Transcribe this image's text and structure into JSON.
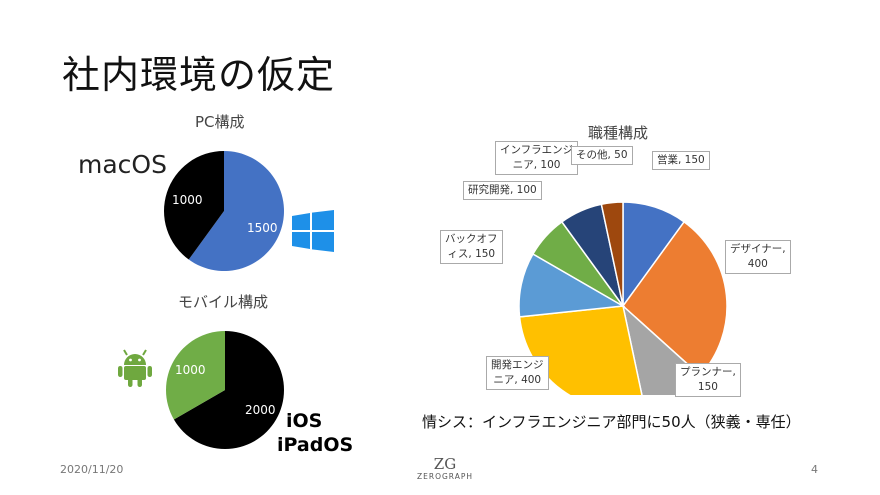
{
  "slide": {
    "title": "社内環境の仮定",
    "date": "2020/11/20",
    "page_number": "4",
    "logo_text": "ZEROGRAPH",
    "logo_mark": "ZG",
    "note": "情シス：インフラエンジニア部門に50人（狭義・専任）"
  },
  "pc": {
    "subtitle": "PC構成",
    "os_label": "macOS",
    "icon": "windows-logo-icon"
  },
  "mobile": {
    "subtitle": "モバイル構成",
    "os_label_1": "iOS",
    "os_label_2": "iPadOS",
    "icon": "android-robot-icon"
  },
  "job": {
    "subtitle": "職種構成"
  },
  "chart_data": [
    {
      "type": "pie",
      "title": "PC構成",
      "categories": [
        "macOS",
        "Windows"
      ],
      "values": [
        1000,
        1500
      ],
      "colors": [
        "#000000",
        "#4472C4"
      ]
    },
    {
      "type": "pie",
      "title": "モバイル構成",
      "categories": [
        "iOS/iPadOS",
        "Android"
      ],
      "values": [
        2000,
        1000
      ],
      "colors": [
        "#000000",
        "#70AD47"
      ]
    },
    {
      "type": "pie",
      "title": "職種構成",
      "categories": [
        "営業",
        "デザイナー",
        "プランナー",
        "開発エンジニア",
        "バックオフィス",
        "研究開発",
        "インフラエンジニア",
        "その他"
      ],
      "values": [
        150,
        400,
        150,
        400,
        150,
        100,
        100,
        50
      ],
      "labels": [
        "営業, 150",
        "デザイナー, 400",
        "プランナー, 150",
        "開発エンジニア, 400",
        "バックオフィス, 150",
        "研究開発, 100",
        "インフラエンジニア, 100",
        "その他, 50"
      ],
      "colors": [
        "#4472C4",
        "#ED7D31",
        "#A5A5A5",
        "#FFC000",
        "#5B9BD5",
        "#70AD47",
        "#264478",
        "#9E480E"
      ]
    }
  ]
}
